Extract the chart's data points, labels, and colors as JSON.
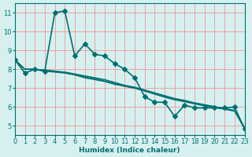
{
  "xlabel": "Humidex (Indice chaleur)",
  "ylabel": "",
  "bg_color": "#d6f0f0",
  "grid_color": "#f0a0a0",
  "line_color": "#007070",
  "xlim": [
    0,
    23
  ],
  "ylim": [
    4.5,
    11.5
  ],
  "yticks": [
    5,
    6,
    7,
    8,
    9,
    10,
    11
  ],
  "xticks": [
    0,
    1,
    2,
    3,
    4,
    5,
    6,
    7,
    8,
    9,
    10,
    11,
    12,
    13,
    14,
    15,
    16,
    17,
    18,
    19,
    20,
    21,
    22,
    23
  ],
  "series": [
    {
      "x": [
        0,
        1,
        2,
        3,
        4,
        5,
        6,
        7,
        8,
        9,
        10,
        11,
        12,
        13,
        14,
        15,
        16,
        17,
        18,
        19,
        20,
        21,
        22,
        23
      ],
      "y": [
        8.5,
        7.8,
        8.0,
        7.9,
        11.0,
        11.1,
        8.7,
        9.35,
        8.8,
        8.7,
        8.3,
        8.0,
        7.55,
        6.55,
        6.25,
        6.25,
        5.5,
        6.1,
        5.95,
        5.95,
        5.95,
        5.95,
        6.0,
        4.85
      ],
      "marker": "D",
      "markersize": 3,
      "linewidth": 1.2
    },
    {
      "x": [
        0,
        1,
        2,
        3,
        4,
        5,
        6,
        7,
        8,
        9,
        10,
        11,
        12,
        13,
        14,
        15,
        16,
        17,
        18,
        19,
        20,
        21,
        22,
        23
      ],
      "y": [
        8.5,
        8.0,
        8.0,
        7.9,
        7.85,
        7.8,
        7.7,
        7.55,
        7.45,
        7.35,
        7.2,
        7.1,
        7.0,
        6.85,
        6.7,
        6.55,
        6.4,
        6.3,
        6.2,
        6.1,
        6.0,
        5.9,
        5.8,
        4.85
      ],
      "marker": null,
      "markersize": 0,
      "linewidth": 1.0
    },
    {
      "x": [
        0,
        1,
        2,
        3,
        4,
        5,
        6,
        7,
        8,
        9,
        10,
        11,
        12,
        13,
        14,
        15,
        16,
        17,
        18,
        19,
        20,
        21,
        22,
        23
      ],
      "y": [
        8.5,
        8.0,
        8.0,
        7.95,
        7.9,
        7.85,
        7.75,
        7.65,
        7.55,
        7.45,
        7.3,
        7.15,
        7.05,
        6.9,
        6.75,
        6.6,
        6.45,
        6.35,
        6.22,
        6.12,
        6.02,
        5.92,
        5.82,
        4.9
      ],
      "marker": null,
      "markersize": 0,
      "linewidth": 1.0
    },
    {
      "x": [
        0,
        1,
        2,
        3,
        4,
        5,
        6,
        7,
        8,
        9,
        10,
        11,
        12,
        13,
        14,
        15,
        16,
        17,
        18,
        19,
        20,
        21,
        22,
        23
      ],
      "y": [
        8.5,
        8.0,
        8.0,
        7.95,
        7.9,
        7.82,
        7.72,
        7.6,
        7.5,
        7.38,
        7.25,
        7.1,
        7.0,
        6.85,
        6.68,
        6.52,
        6.38,
        6.28,
        6.16,
        6.06,
        5.97,
        5.88,
        5.78,
        4.88
      ],
      "marker": null,
      "markersize": 0,
      "linewidth": 1.0
    }
  ]
}
